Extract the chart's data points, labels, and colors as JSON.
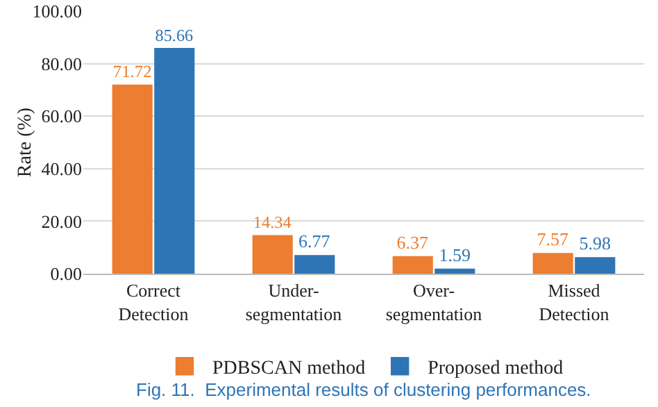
{
  "chart_data": {
    "type": "bar",
    "ylabel": "Rate (%)",
    "categories": [
      "Correct\nDetection",
      "Under-\nsegmentation",
      "Over-\nsegmentation",
      "Missed\nDetection"
    ],
    "series": [
      {
        "name": "PDBSCAN method",
        "color": "#ed7d31",
        "values": [
          71.72,
          14.34,
          6.37,
          7.57
        ]
      },
      {
        "name": "Proposed method",
        "color": "#2e75b6",
        "values": [
          85.66,
          6.77,
          1.59,
          5.98
        ]
      }
    ],
    "ylim": [
      0,
      100
    ],
    "yticks": [
      {
        "value": 0,
        "label": "0.00"
      },
      {
        "value": 20,
        "label": "20.00"
      },
      {
        "value": 40,
        "label": "40.00"
      },
      {
        "value": 60,
        "label": "60.00"
      },
      {
        "value": 80,
        "label": "80.00"
      },
      {
        "value": 100,
        "label": "100.00"
      }
    ],
    "grid": "y",
    "legend": "bottom",
    "data_labels": true,
    "annotations": [
      "Fig. 11.  Experimental results of clustering performances."
    ]
  }
}
